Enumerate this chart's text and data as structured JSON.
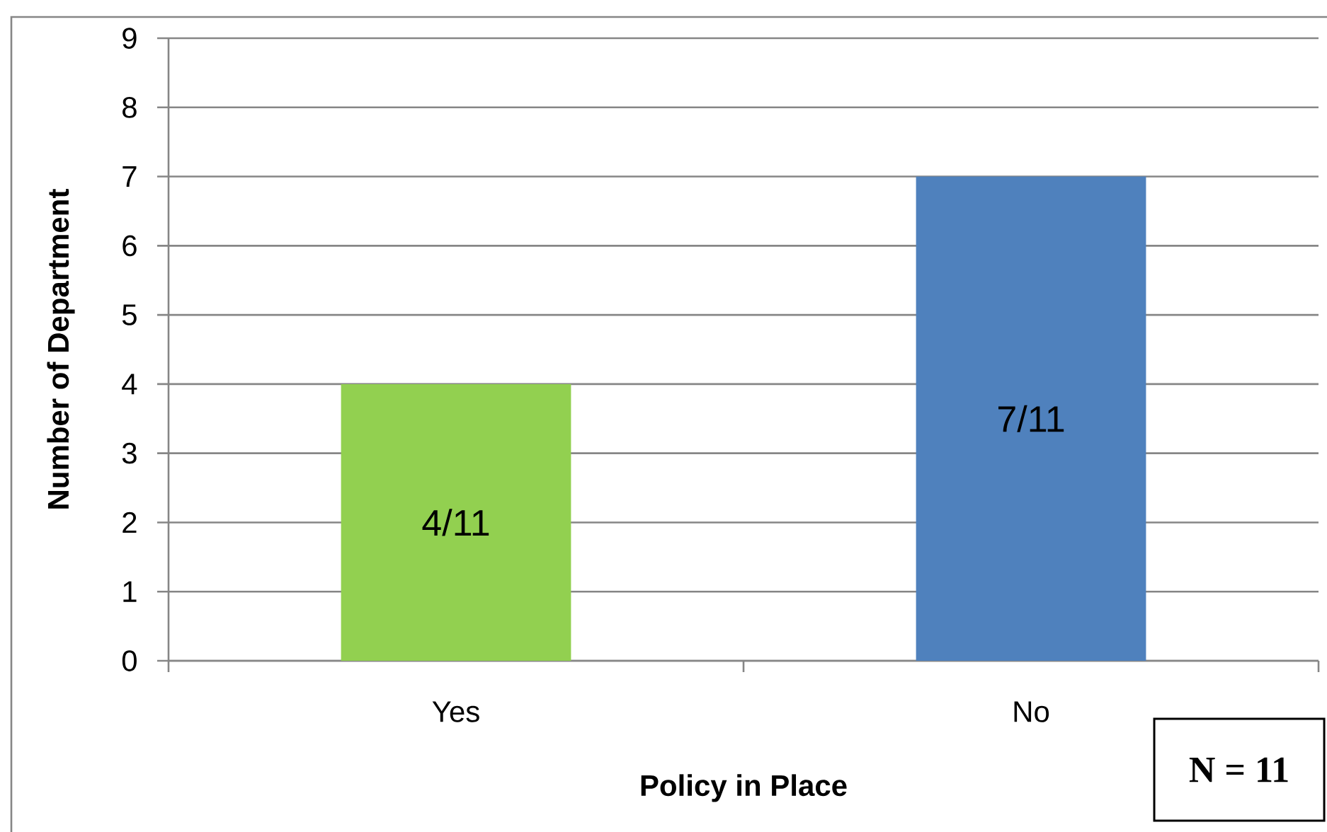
{
  "chart_data": {
    "type": "bar",
    "categories": [
      "Yes",
      "No"
    ],
    "values": [
      4,
      7
    ],
    "colors": [
      "#92d050",
      "#4f81bd"
    ],
    "value_labels": [
      "4/11",
      "7/11"
    ],
    "xlabel": "Policy in Place",
    "ylabel": "Number of Department",
    "ylim": [
      0,
      9
    ],
    "yticks": [
      0,
      1,
      2,
      3,
      4,
      5,
      6,
      7,
      8,
      9
    ],
    "grid": "y",
    "annotations": [
      "N = 11"
    ]
  }
}
